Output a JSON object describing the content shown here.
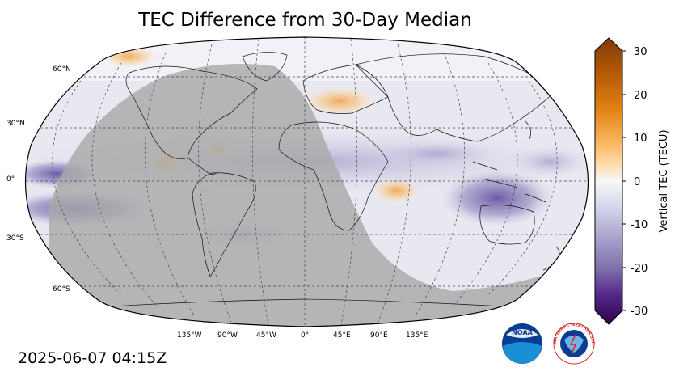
{
  "title": "TEC Difference from 30-Day Median",
  "timestamp": "2025-06-07 04:15Z",
  "latitude_labels": [
    "60°N",
    "30°N",
    "0°",
    "30°S",
    "60°S"
  ],
  "longitude_labels": [
    "135°W",
    "90°W",
    "45°W",
    "0°",
    "45°E",
    "90°E",
    "135°E"
  ],
  "colorbar": {
    "label": "Vertical TEC (TECU)",
    "ticks": [
      "30",
      "20",
      "10",
      "0",
      "-10",
      "-20",
      "-30"
    ],
    "range": [
      -30,
      30
    ],
    "colors_top_to_bottom": [
      "#7f3b08",
      "#b35806",
      "#e08214",
      "#fdb863",
      "#fee0b6",
      "#f7f7f7",
      "#d8daeb",
      "#b2abd2",
      "#8073ac",
      "#542788",
      "#2d004b"
    ]
  },
  "logos": {
    "noaa": "NOAA",
    "nws": "NATIONAL WEATHER SERVICE"
  },
  "colors": {
    "night_shade": "#a9a9a9",
    "ocean_base": "#ebebf3"
  }
}
